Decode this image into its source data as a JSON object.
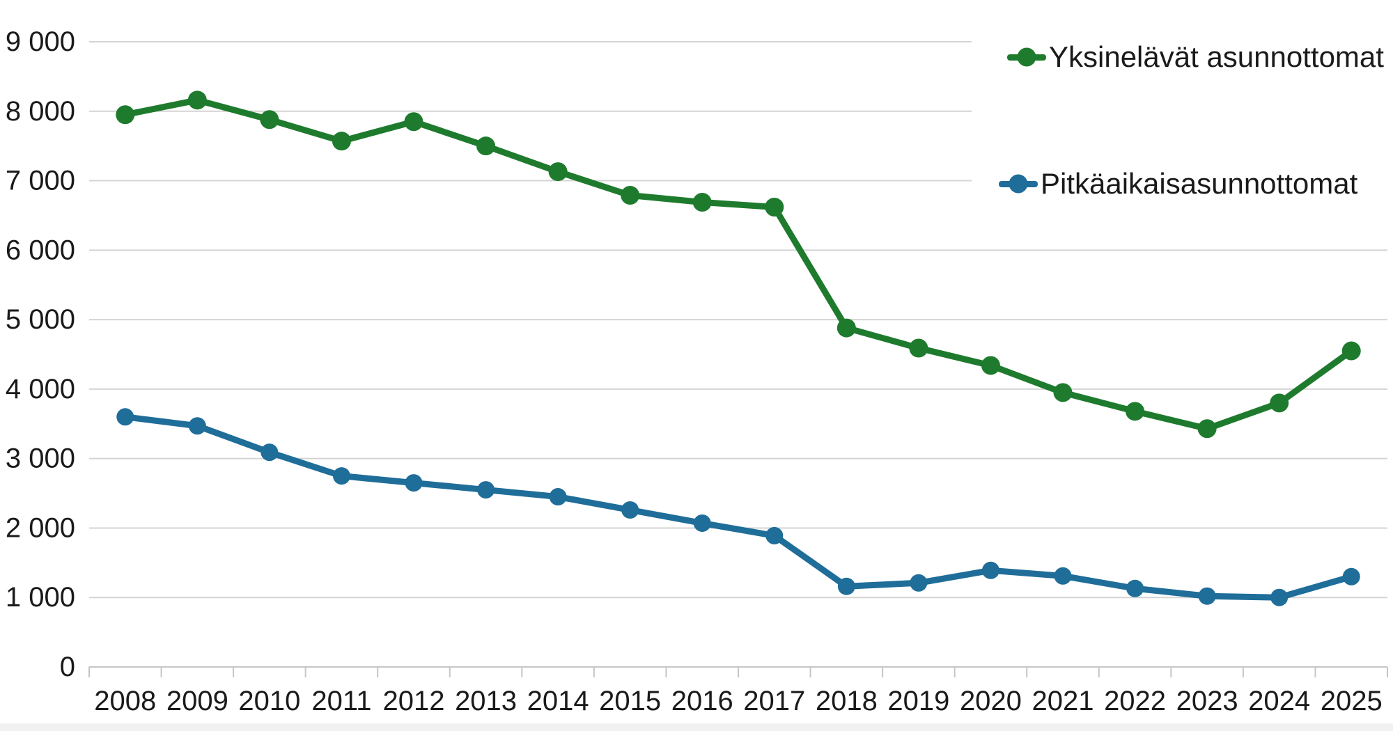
{
  "chart_data": {
    "type": "line",
    "title": "",
    "xlabel": "",
    "ylabel": "",
    "x": [
      2008,
      2009,
      2010,
      2011,
      2012,
      2013,
      2014,
      2015,
      2016,
      2017,
      2018,
      2019,
      2020,
      2021,
      2022,
      2023,
      2024,
      2025
    ],
    "series": [
      {
        "name": "Yksinelävät asunnottomat",
        "color": "#1e7b2d",
        "values": [
          7950,
          8160,
          7880,
          7570,
          7850,
          7500,
          7130,
          6790,
          6690,
          6620,
          4880,
          4590,
          4340,
          3950,
          3680,
          3430,
          3800,
          4550
        ]
      },
      {
        "name": "Pitkäaikaisasunnottomat",
        "color": "#1f6d99",
        "values": [
          3600,
          3470,
          3090,
          2750,
          2650,
          2550,
          2450,
          2260,
          2070,
          1890,
          1160,
          1210,
          1390,
          1310,
          1130,
          1020,
          1000,
          1300
        ]
      }
    ],
    "ylim": [
      0,
      9000
    ],
    "y_tick_interval": 1000,
    "y_tick_labels": [
      "0",
      "1 000",
      "2 000",
      "3 000",
      "4 000",
      "5 000",
      "6 000",
      "7 000",
      "8 000",
      "9 000"
    ],
    "grid": true,
    "legend_position": "top-right"
  },
  "colors": {
    "series_green": "#1e7b2d",
    "series_blue": "#1f6d99",
    "gridline": "#d4d4d4",
    "axis_line": "#c6c6c6",
    "tick": "#c6c6c6",
    "label_text": "#1a1a1a"
  }
}
